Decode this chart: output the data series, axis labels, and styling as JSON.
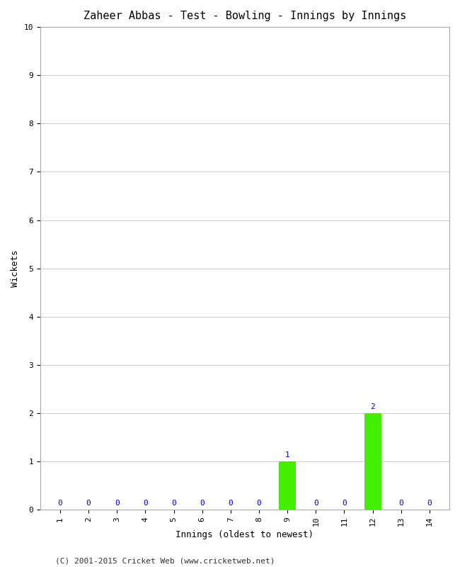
{
  "title": "Zaheer Abbas - Test - Bowling - Innings by Innings",
  "xlabel": "Innings (oldest to newest)",
  "ylabel": "Wickets",
  "innings": [
    1,
    2,
    3,
    4,
    5,
    6,
    7,
    8,
    9,
    10,
    11,
    12,
    13,
    14
  ],
  "wickets": [
    0,
    0,
    0,
    0,
    0,
    0,
    0,
    0,
    1,
    0,
    0,
    2,
    0,
    0
  ],
  "bar_color": "#44ee00",
  "label_color": "#0000cc",
  "ylim": [
    0,
    10
  ],
  "yticks": [
    0,
    1,
    2,
    3,
    4,
    5,
    6,
    7,
    8,
    9,
    10
  ],
  "xticks": [
    1,
    2,
    3,
    4,
    5,
    6,
    7,
    8,
    9,
    10,
    11,
    12,
    13,
    14
  ],
  "background_color": "#ffffff",
  "grid_color": "#cccccc",
  "footer": "(C) 2001-2015 Cricket Web (www.cricketweb.net)",
  "title_fontsize": 11,
  "axis_label_fontsize": 9,
  "tick_fontsize": 8,
  "bar_label_fontsize": 8,
  "footer_fontsize": 8
}
